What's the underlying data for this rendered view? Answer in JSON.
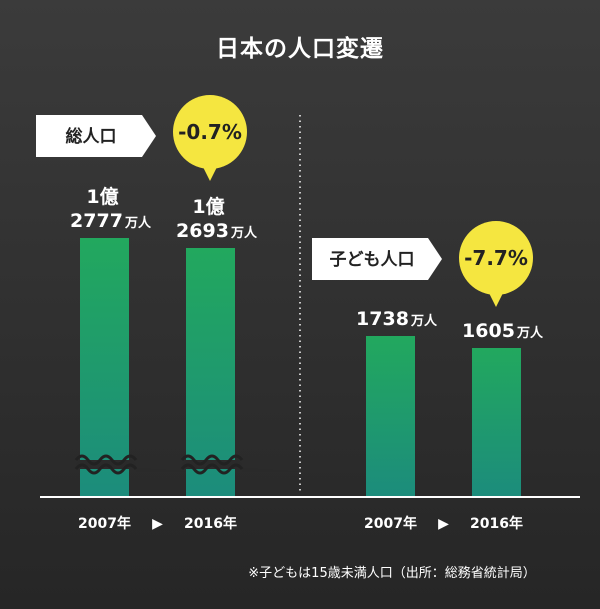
{
  "colors": {
    "bar_top": "#22a85e",
    "bar_bottom": "#1c8c7c",
    "badge": "#f5e640",
    "tag_bg": "#ffffff",
    "axis": "#ffffff"
  },
  "chart_data": {
    "type": "bar",
    "title": "日本の人口変遷",
    "note": "※子どもは15歳未満人口（出所：総務省統計局）",
    "arrow_glyph": "▶",
    "groups": [
      {
        "label": "総人口",
        "change": "-0.7%",
        "axis_break": true,
        "unit": "万人",
        "bars": [
          {
            "year": "2007年",
            "value": 12777,
            "label_line1": "1億",
            "label_line2": "2777",
            "unit": "万人"
          },
          {
            "year": "2016年",
            "value": 12693,
            "label_line1": "1億",
            "label_line2": "2693",
            "unit": "万人"
          }
        ]
      },
      {
        "label": "子ども人口",
        "change": "-7.7%",
        "axis_break": false,
        "unit": "万人",
        "bars": [
          {
            "year": "2007年",
            "value": 1738,
            "label_line1": "",
            "label_line2": "1738",
            "unit": "万人"
          },
          {
            "year": "2016年",
            "value": 1605,
            "label_line1": "",
            "label_line2": "1605",
            "unit": "万人"
          }
        ]
      }
    ]
  }
}
